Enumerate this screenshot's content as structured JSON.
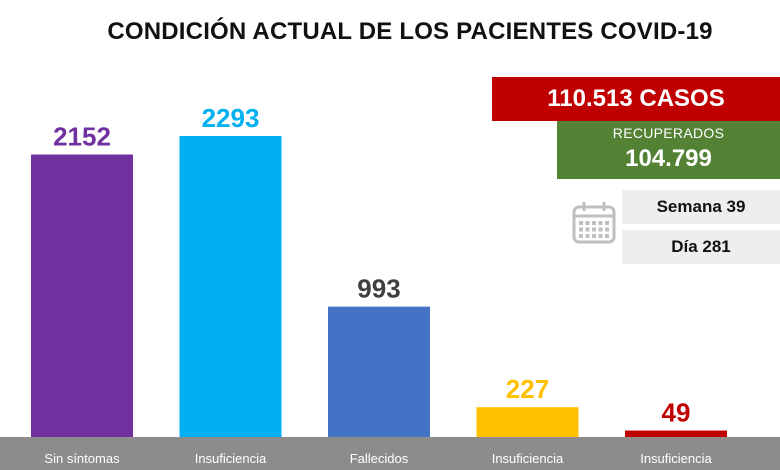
{
  "title": "CONDICIÓN ACTUAL DE LOS PACIENTES COVID-19",
  "summary": {
    "cases_label": "110.513 CASOS",
    "recovered_label": "RECUPERADOS",
    "recovered_value": "104.799",
    "week_label": "Semana 39",
    "day_label": "Día 281",
    "calendar_icon": "calendar-icon"
  },
  "colors": {
    "cases_bg": "#c00000",
    "recovered_bg": "#548235",
    "axis_band": "#8c8c8c",
    "calendar_icon": "#bfbfbf"
  },
  "chart_data": {
    "type": "bar",
    "categories": [
      "Sin síntomas",
      "Insuficiencia",
      "Fallecidos",
      "Insuficiencia",
      "Insuficiencia"
    ],
    "values": [
      2152,
      2293,
      993,
      227,
      49
    ],
    "data_labels": [
      "2152",
      "2293",
      "993",
      "227",
      "49"
    ],
    "colors": [
      "#7030a0",
      "#00b0f0",
      "#4472c4",
      "#ffc000",
      "#c00000"
    ],
    "label_colors": [
      "#7030a0",
      "#00b0f0",
      "#404040",
      "#ffc000",
      "#c00000"
    ],
    "ylim": [
      0,
      2293
    ],
    "grid": false,
    "legend": "none"
  }
}
